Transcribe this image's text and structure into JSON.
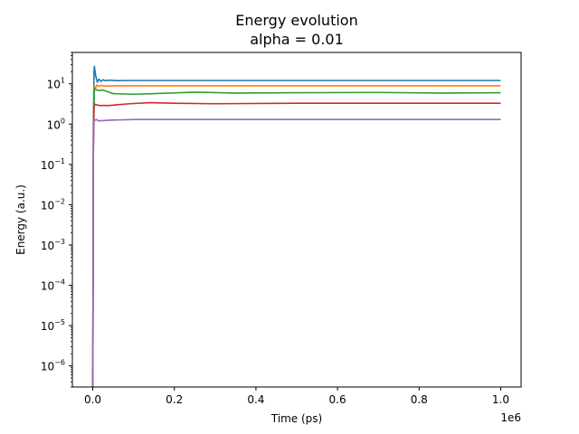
{
  "chart_data": {
    "type": "line",
    "title_line1": "Energy evolution",
    "title_line2": "alpha = 0.01",
    "xlabel": "Time (ps)",
    "ylabel": "Energy (a.u.)",
    "x_offset_label": "1e6",
    "xscale": "linear",
    "yscale": "log",
    "xlim": [
      -50000,
      1050000
    ],
    "ylim": [
      3e-07,
      60
    ],
    "grid": false,
    "legend": "none",
    "xticks": [
      {
        "value": 0.0,
        "label": "0.0"
      },
      {
        "value": 200000,
        "label": "0.2"
      },
      {
        "value": 400000,
        "label": "0.4"
      },
      {
        "value": 600000,
        "label": "0.6"
      },
      {
        "value": 800000,
        "label": "0.8"
      },
      {
        "value": 1000000,
        "label": "1.0"
      }
    ],
    "yticks": [
      {
        "exp": 1,
        "base": "10",
        "sup": "1"
      },
      {
        "exp": 0,
        "base": "10",
        "sup": "0"
      },
      {
        "exp": -1,
        "base": "10",
        "sup": "−1"
      },
      {
        "exp": -2,
        "base": "10",
        "sup": "−2"
      },
      {
        "exp": -3,
        "base": "10",
        "sup": "−3"
      },
      {
        "exp": -4,
        "base": "10",
        "sup": "−4"
      },
      {
        "exp": -5,
        "base": "10",
        "sup": "−5"
      },
      {
        "exp": -6,
        "base": "10",
        "sup": "−6"
      }
    ],
    "series": [
      {
        "color": "#1f77b4",
        "points": [
          [
            0,
            1e-07
          ],
          [
            1500,
            1
          ],
          [
            3000,
            20
          ],
          [
            4000,
            27
          ],
          [
            7000,
            16
          ],
          [
            11000,
            11
          ],
          [
            15000,
            13
          ],
          [
            20000,
            11.5
          ],
          [
            25000,
            12.6
          ],
          [
            30000,
            11.9
          ],
          [
            40000,
            12.3
          ],
          [
            60000,
            12.0
          ],
          [
            100000,
            12.1
          ],
          [
            400000,
            12.1
          ],
          [
            1000000,
            12.1
          ]
        ]
      },
      {
        "color": "#ff7f0e",
        "points": [
          [
            0,
            1e-07
          ],
          [
            1500,
            0.5
          ],
          [
            3500,
            9
          ],
          [
            6000,
            7.5
          ],
          [
            10000,
            9.3
          ],
          [
            15000,
            8.6
          ],
          [
            20000,
            9.1
          ],
          [
            30000,
            8.8
          ],
          [
            60000,
            8.9
          ],
          [
            1000000,
            8.9
          ]
        ]
      },
      {
        "color": "#2ca02c",
        "points": [
          [
            0,
            1e-07
          ],
          [
            1500,
            0.3
          ],
          [
            4000,
            7.5
          ],
          [
            8000,
            7.2
          ],
          [
            15000,
            6.8
          ],
          [
            25000,
            7.0
          ],
          [
            50000,
            5.7
          ],
          [
            100000,
            5.5
          ],
          [
            150000,
            5.7
          ],
          [
            250000,
            6.2
          ],
          [
            350000,
            5.9
          ],
          [
            500000,
            6.0
          ],
          [
            700000,
            6.1
          ],
          [
            850000,
            5.9
          ],
          [
            1000000,
            6.0
          ]
        ]
      },
      {
        "color": "#d62728",
        "points": [
          [
            0,
            1e-07
          ],
          [
            1500,
            0.3
          ],
          [
            3000,
            2.8
          ],
          [
            6000,
            3.1
          ],
          [
            15000,
            2.9
          ],
          [
            40000,
            2.9
          ],
          [
            90000,
            3.2
          ],
          [
            140000,
            3.4
          ],
          [
            200000,
            3.3
          ],
          [
            300000,
            3.2
          ],
          [
            500000,
            3.3
          ],
          [
            700000,
            3.3
          ],
          [
            1000000,
            3.3
          ]
        ]
      },
      {
        "color": "#9467bd",
        "points": [
          [
            0,
            1e-07
          ],
          [
            1500,
            0.2
          ],
          [
            3000,
            1.2
          ],
          [
            8000,
            1.3
          ],
          [
            15000,
            1.2
          ],
          [
            40000,
            1.25
          ],
          [
            100000,
            1.3
          ],
          [
            300000,
            1.3
          ],
          [
            1000000,
            1.3
          ]
        ]
      }
    ]
  }
}
